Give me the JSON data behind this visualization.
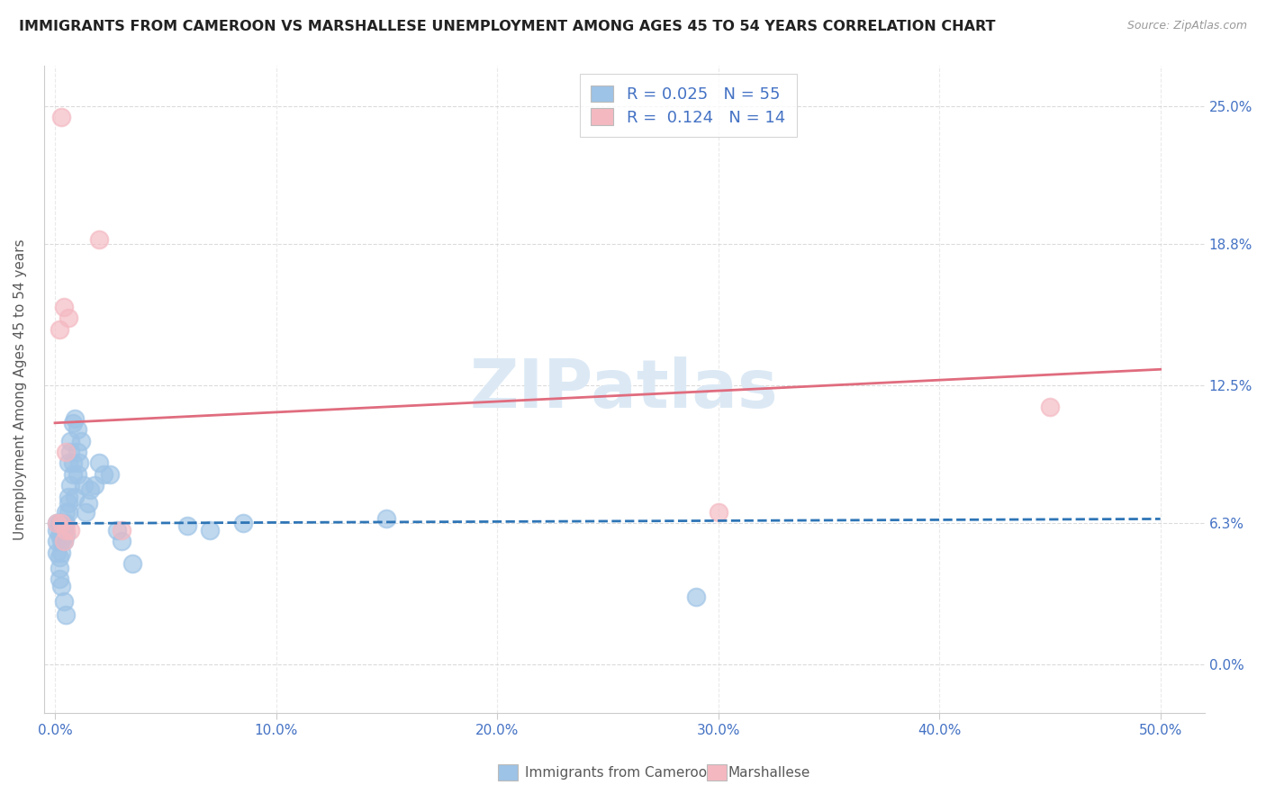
{
  "title": "IMMIGRANTS FROM CAMEROON VS MARSHALLESE UNEMPLOYMENT AMONG AGES 45 TO 54 YEARS CORRELATION CHART",
  "source": "Source: ZipAtlas.com",
  "ylabel": "Unemployment Among Ages 45 to 54 years",
  "xlim": [
    -0.005,
    0.52
  ],
  "ylim": [
    -0.022,
    0.268
  ],
  "xlabel_vals": [
    0.0,
    0.1,
    0.2,
    0.3,
    0.4,
    0.5
  ],
  "xlabel_ticks": [
    "0.0%",
    "10.0%",
    "20.0%",
    "30.0%",
    "40.0%",
    "50.0%"
  ],
  "ylabel_vals": [
    0.0,
    0.063,
    0.125,
    0.188,
    0.25
  ],
  "ylabel_ticks": [
    "0.0%",
    "6.3%",
    "12.5%",
    "18.8%",
    "25.0%"
  ],
  "R_blue": 0.025,
  "N_blue": 55,
  "R_pink": 0.124,
  "N_pink": 14,
  "blue_color": "#9DC3E6",
  "pink_color": "#F4B8C1",
  "blue_line_color": "#2E75B6",
  "pink_line_color": "#E06C7E",
  "title_color": "#222222",
  "axis_label_color": "#595959",
  "tick_label_color": "#4472C4",
  "grid_color": "#CCCCCC",
  "watermark": "ZIPatlas",
  "blue_scatter_x": [
    0.001,
    0.001,
    0.001,
    0.001,
    0.002,
    0.002,
    0.002,
    0.002,
    0.002,
    0.003,
    0.003,
    0.003,
    0.003,
    0.003,
    0.004,
    0.004,
    0.004,
    0.004,
    0.005,
    0.005,
    0.005,
    0.005,
    0.006,
    0.006,
    0.006,
    0.006,
    0.007,
    0.007,
    0.007,
    0.008,
    0.008,
    0.008,
    0.009,
    0.009,
    0.01,
    0.01,
    0.01,
    0.011,
    0.012,
    0.013,
    0.014,
    0.015,
    0.016,
    0.018,
    0.02,
    0.022,
    0.025,
    0.028,
    0.03,
    0.035,
    0.06,
    0.07,
    0.085,
    0.15,
    0.29
  ],
  "blue_scatter_y": [
    0.06,
    0.063,
    0.055,
    0.05,
    0.063,
    0.058,
    0.048,
    0.043,
    0.038,
    0.063,
    0.06,
    0.055,
    0.05,
    0.035,
    0.063,
    0.06,
    0.055,
    0.028,
    0.068,
    0.063,
    0.058,
    0.022,
    0.075,
    0.072,
    0.068,
    0.09,
    0.08,
    0.095,
    0.1,
    0.085,
    0.09,
    0.108,
    0.11,
    0.075,
    0.085,
    0.095,
    0.105,
    0.09,
    0.1,
    0.08,
    0.068,
    0.072,
    0.078,
    0.08,
    0.09,
    0.085,
    0.085,
    0.06,
    0.055,
    0.045,
    0.062,
    0.06,
    0.063,
    0.065,
    0.03
  ],
  "pink_scatter_x": [
    0.001,
    0.002,
    0.003,
    0.003,
    0.004,
    0.004,
    0.005,
    0.005,
    0.006,
    0.007,
    0.02,
    0.03,
    0.3,
    0.45
  ],
  "pink_scatter_y": [
    0.063,
    0.15,
    0.245,
    0.063,
    0.16,
    0.055,
    0.095,
    0.06,
    0.155,
    0.06,
    0.19,
    0.06,
    0.068,
    0.115
  ],
  "blue_trend_x": [
    0.0,
    0.5
  ],
  "blue_trend_y": [
    0.063,
    0.065
  ],
  "pink_trend_x": [
    0.0,
    0.5
  ],
  "pink_trend_y": [
    0.108,
    0.132
  ]
}
